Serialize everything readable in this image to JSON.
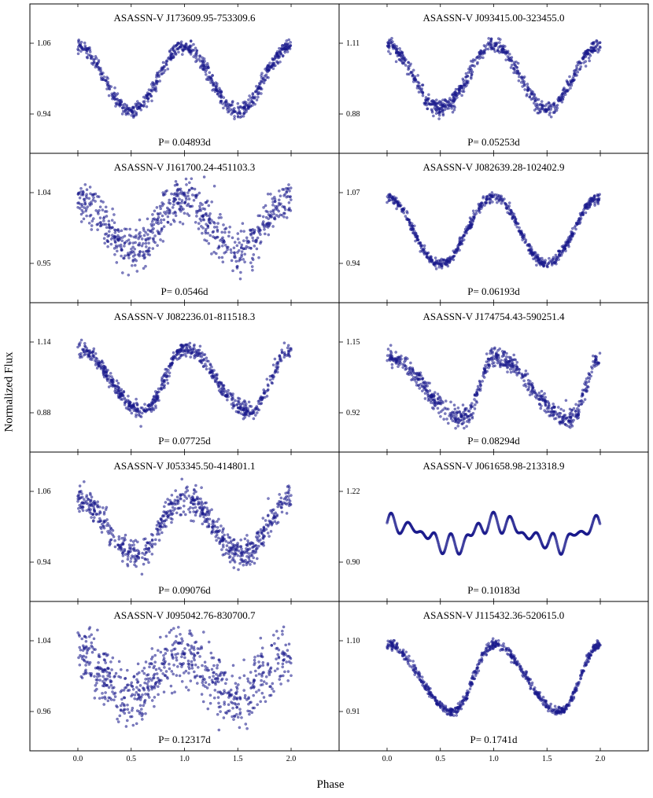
{
  "figure": {
    "ylabel": "Normalized Flux",
    "xlabel": "Phase",
    "point_color": "#1a1a8c",
    "x_ticks": [
      "0.0",
      "0.5",
      "1.0",
      "1.5",
      "2.0"
    ]
  },
  "chart_data": [
    {
      "type": "scatter",
      "title": "ASASSN-V J173609.95-753309.6",
      "period_label": "P= 0.04893d",
      "y_ticks": [
        "1.06",
        "0.94"
      ],
      "xlim": [
        -0.45,
        2.45
      ],
      "shape": "sine",
      "amplitude": 0.055,
      "skew": 0.5,
      "scatter": 0.004
    },
    {
      "type": "scatter",
      "title": "ASASSN-V J093415.00-323455.0",
      "period_label": "P= 0.05253d",
      "y_ticks": [
        "1.11",
        "0.88"
      ],
      "xlim": [
        -0.45,
        2.45
      ],
      "shape": "sine",
      "amplitude": 0.105,
      "skew": 0.5,
      "scatter": 0.008
    },
    {
      "type": "scatter",
      "title": "ASASSN-V J161700.24-451103.3",
      "period_label": "P= 0.0546d",
      "y_ticks": [
        "1.04",
        "0.95"
      ],
      "xlim": [
        -0.45,
        2.45
      ],
      "shape": "sine",
      "amplitude": 0.032,
      "skew": 0.5,
      "scatter": 0.008
    },
    {
      "type": "scatter",
      "title": "ASASSN-V J082639.28-102402.9",
      "period_label": "P= 0.06193d",
      "y_ticks": [
        "1.07",
        "0.94"
      ],
      "xlim": [
        -0.45,
        2.45
      ],
      "shape": "sine",
      "amplitude": 0.062,
      "skew": 0.5,
      "scatter": 0.003
    },
    {
      "type": "scatter",
      "title": "ASASSN-V J082236.01-811518.3",
      "period_label": "P= 0.07725d",
      "y_ticks": [
        "1.14",
        "0.88"
      ],
      "xlim": [
        -0.45,
        2.45
      ],
      "shape": "sawtooth",
      "amplitude": 0.115,
      "skew": 0.62,
      "scatter": 0.009
    },
    {
      "type": "scatter",
      "title": "ASASSN-V J174754.43-590251.4",
      "period_label": "P= 0.08294d",
      "y_ticks": [
        "1.15",
        "0.92"
      ],
      "xlim": [
        -0.45,
        2.45
      ],
      "shape": "sawtooth",
      "amplitude": 0.1,
      "skew": 0.72,
      "scatter": 0.01
    },
    {
      "type": "scatter",
      "title": "ASASSN-V J053345.50-414801.1",
      "period_label": "P= 0.09076d",
      "y_ticks": [
        "1.06",
        "0.94"
      ],
      "xlim": [
        -0.45,
        2.45
      ],
      "shape": "sine",
      "amplitude": 0.048,
      "skew": 0.55,
      "scatter": 0.007
    },
    {
      "type": "scatter",
      "title": "ASASSN-V J061658.98-213318.9",
      "period_label": "P= 0.10183d",
      "y_ticks": [
        "1.22",
        "0.90"
      ],
      "xlim": [
        -0.45,
        2.45
      ],
      "shape": "drift",
      "amplitude": 0.12,
      "skew": 0.6,
      "scatter": 0.004
    },
    {
      "type": "scatter",
      "title": "ASASSN-V J095042.76-830700.7",
      "period_label": "P= 0.12317d",
      "y_ticks": [
        "1.04",
        "0.96"
      ],
      "xlim": [
        -0.45,
        2.45
      ],
      "shape": "sine",
      "amplitude": 0.025,
      "skew": 0.5,
      "scatter": 0.01
    },
    {
      "type": "scatter",
      "title": "ASASSN-V J115432.36-520615.0",
      "period_label": "P= 0.1741d",
      "y_ticks": [
        "1.10",
        "0.91"
      ],
      "xlim": [
        -0.45,
        2.45
      ],
      "shape": "sawtooth",
      "amplitude": 0.09,
      "skew": 0.62,
      "scatter": 0.004
    }
  ]
}
